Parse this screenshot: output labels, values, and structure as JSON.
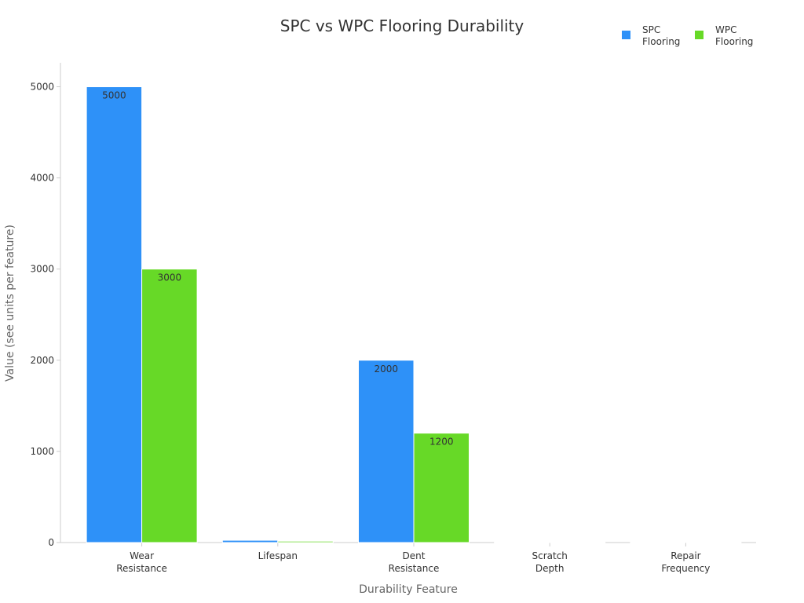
{
  "chart_data": {
    "type": "bar",
    "title": "SPC vs WPC Flooring Durability",
    "xlabel": "Durability Feature",
    "ylabel": "Value (see units per feature)",
    "categories": [
      [
        "Wear",
        "Resistance"
      ],
      [
        "Lifespan"
      ],
      [
        "Dent",
        "Resistance"
      ],
      [
        "Scratch",
        "Depth"
      ],
      [
        "Repair",
        "Frequency"
      ]
    ],
    "series": [
      {
        "name": [
          "SPC",
          "Flooring"
        ],
        "color": "#2e91f8",
        "values": [
          5000,
          25,
          2000,
          0.2,
          0.5
        ],
        "labels": [
          "5000",
          "",
          "2000",
          "",
          ""
        ]
      },
      {
        "name": [
          "WPC",
          "Flooring"
        ],
        "color": "#67d927",
        "values": [
          3000,
          15,
          1200,
          0.5,
          2
        ],
        "labels": [
          "3000",
          "",
          "1200",
          "",
          ""
        ]
      }
    ],
    "ylim": [
      0,
      5000
    ],
    "yticks": [
      0,
      1000,
      2000,
      3000,
      4000,
      5000
    ],
    "grid": false,
    "legend_position": "top-right"
  }
}
